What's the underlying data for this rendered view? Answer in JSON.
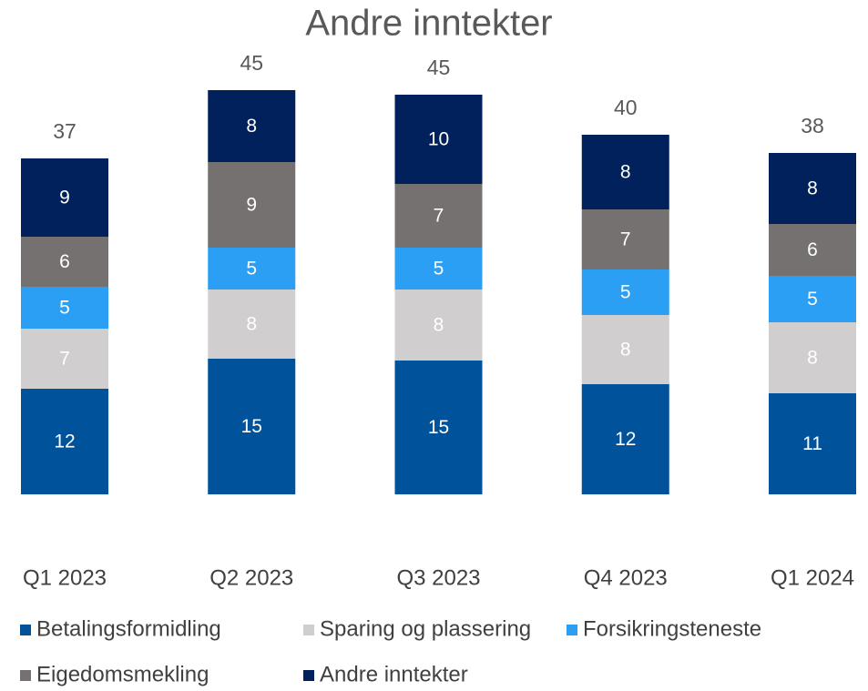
{
  "chart_data": {
    "type": "stacked_bar",
    "title": "Andre inntekter",
    "categories": [
      "Q1 2023",
      "Q2 2023",
      "Q3 2023",
      "Q4 2023",
      "Q1 2024"
    ],
    "series": [
      {
        "name": "Betalingsformidling",
        "color": "#00529b",
        "values": [
          11.6,
          14.9,
          14.7,
          12.1,
          11.1
        ],
        "value_labels": [
          "12",
          "15",
          "15",
          "12",
          "11"
        ]
      },
      {
        "name": "Sparing og plassering",
        "color": "#d0cece",
        "values": [
          6.6,
          7.6,
          7.8,
          7.6,
          7.8
        ],
        "value_labels": [
          "7",
          "8",
          "8",
          "8",
          "8"
        ]
      },
      {
        "name": "Forsikringsteneste",
        "color": "#2b9ff4",
        "values": [
          4.6,
          4.6,
          4.6,
          5.0,
          5.1
        ],
        "value_labels": [
          "5",
          "5",
          "5",
          "5",
          "5"
        ]
      },
      {
        "name": "Eigedomsmekling",
        "color": "#767171",
        "values": [
          5.5,
          9.4,
          7.0,
          6.6,
          5.7
        ],
        "value_labels": [
          "6",
          "9",
          "7",
          "7",
          "6"
        ]
      },
      {
        "name": "Andre inntekter",
        "color": "#00215b",
        "values": [
          8.6,
          7.9,
          9.8,
          8.2,
          7.8
        ],
        "value_labels": [
          "9",
          "8",
          "10",
          "8",
          "8"
        ]
      }
    ],
    "totals": [
      37,
      45,
      45,
      40,
      38
    ],
    "ylim": [
      0,
      50
    ]
  }
}
